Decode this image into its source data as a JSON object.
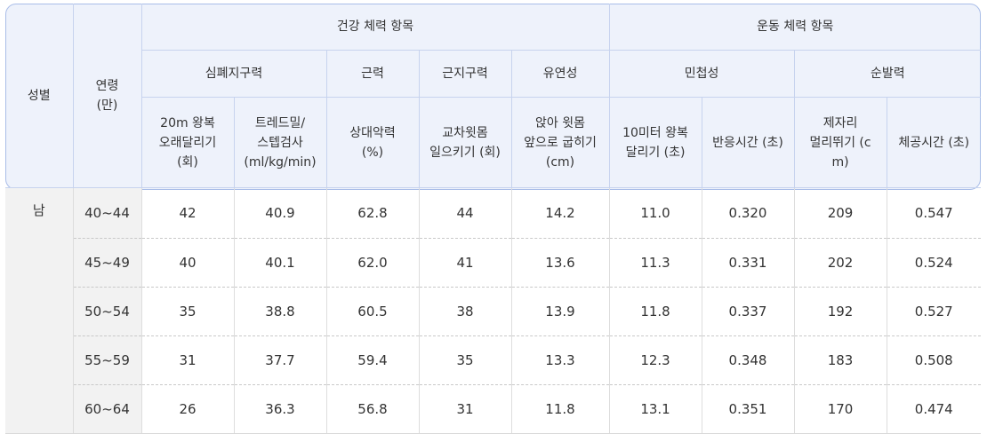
{
  "header": {
    "gender": "성별",
    "age_line1": "연령",
    "age_line2": "(만)",
    "group_health": "건강 체력 항목",
    "group_exercise": "운동 체력 항목",
    "cat_cardio": "심폐지구력",
    "cat_strength": "근력",
    "cat_endurance": "근지구력",
    "cat_flexibility": "유연성",
    "cat_agility": "민첩성",
    "cat_power": "순발력",
    "sub": [
      [
        "20m 왕복",
        "오래달리기",
        "(회)"
      ],
      [
        "트레드밀/",
        "스텝검사",
        "(ml/kg/min)"
      ],
      [
        "상대악력",
        "(%)"
      ],
      [
        "교차윗몸",
        "일으키기 (회)"
      ],
      [
        "앉아 윗몸",
        "앞으로 굽히기",
        "(cm)"
      ],
      [
        "10미터 왕복",
        "달리기 (초)"
      ],
      [
        "반응시간 (초)"
      ],
      [
        "제자리",
        "멀리뛰기 (c",
        "m)"
      ],
      [
        "체공시간 (초)"
      ]
    ]
  },
  "gender_value": "남",
  "rows": [
    {
      "age": "40~44",
      "values": [
        "42",
        "40.9",
        "62.8",
        "44",
        "14.2",
        "11.0",
        "0.320",
        "209",
        "0.547"
      ]
    },
    {
      "age": "45~49",
      "values": [
        "40",
        "40.1",
        "62.0",
        "41",
        "13.6",
        "11.3",
        "0.331",
        "202",
        "0.524"
      ]
    },
    {
      "age": "50~54",
      "values": [
        "35",
        "38.8",
        "60.5",
        "38",
        "13.9",
        "11.8",
        "0.337",
        "192",
        "0.527"
      ]
    },
    {
      "age": "55~59",
      "values": [
        "31",
        "37.7",
        "59.4",
        "35",
        "13.3",
        "12.3",
        "0.348",
        "183",
        "0.508"
      ]
    },
    {
      "age": "60~64",
      "values": [
        "26",
        "36.3",
        "56.8",
        "31",
        "11.8",
        "13.1",
        "0.351",
        "170",
        "0.474"
      ]
    }
  ],
  "colors": {
    "header_bg": "#eef2fb",
    "header_border": "#a9bde8",
    "left_col_bg": "#f2f2f2"
  }
}
